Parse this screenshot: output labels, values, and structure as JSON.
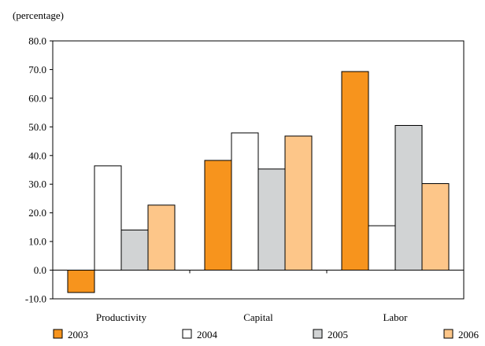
{
  "chart_data": {
    "type": "bar",
    "unit_label": "(percentage)",
    "title": "",
    "xlabel": "",
    "ylabel": "",
    "categories": [
      "Productivity",
      "Capital",
      "Labor"
    ],
    "series": [
      {
        "name": "2003",
        "values": [
          -7.8,
          38.3,
          69.3
        ],
        "color": "#f7941d"
      },
      {
        "name": "2004",
        "values": [
          36.4,
          47.9,
          15.5
        ],
        "color": "#ffffff"
      },
      {
        "name": "2005",
        "values": [
          14.0,
          35.3,
          50.5
        ],
        "color": "#d1d3d4"
      },
      {
        "name": "2006",
        "values": [
          22.7,
          46.8,
          30.2
        ],
        "color": "#fdc689"
      }
    ],
    "ylim": [
      -10.0,
      80.0
    ],
    "yticks": [
      "80.0",
      "70.0",
      "60.0",
      "50.0",
      "40.0",
      "30.0",
      "20.0",
      "10.0",
      "0.0",
      "-10.0"
    ],
    "grid": false,
    "legend_position": "bottom"
  }
}
